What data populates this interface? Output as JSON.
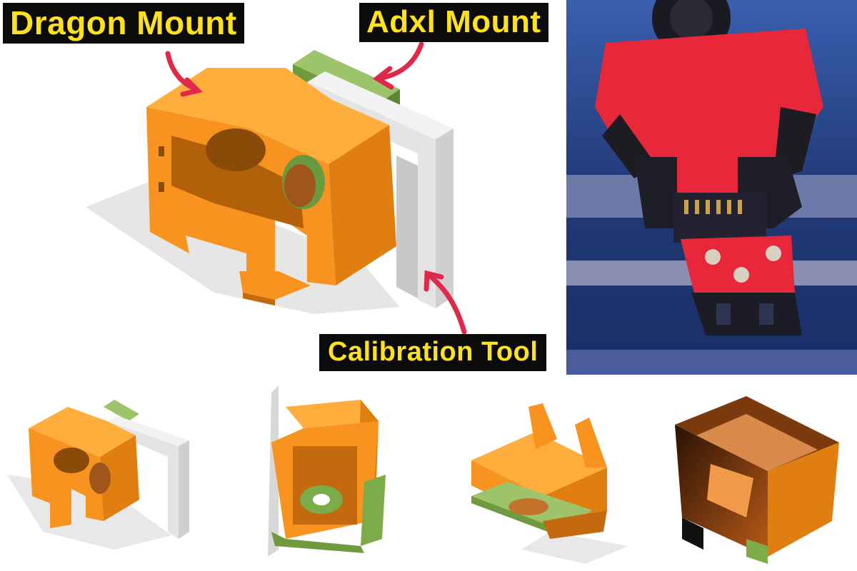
{
  "labels": {
    "dragon_mount": "Dragon Mount",
    "adxl_mount": "Adxl Mount",
    "calibration_tool": "Calibration Tool"
  },
  "colors": {
    "orange": "#f7931e",
    "orange_dark": "#c46a0e",
    "green": "#7cab4a",
    "grey": "#dcdcdc",
    "label_bg": "#0b0b0b",
    "label_text": "#ffe21a",
    "arrow": "#e0284a",
    "hotend_red": "#e8283a",
    "photo_blue": "#2a3f7a"
  },
  "icons": {
    "arrows": "curved-arrow-icon"
  }
}
